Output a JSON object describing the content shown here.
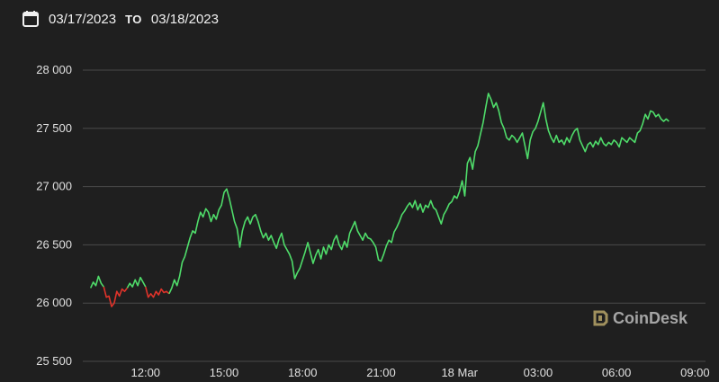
{
  "date_range": {
    "from": "03/17/2023",
    "separator": "TO",
    "to": "03/18/2023"
  },
  "brand": {
    "name": "CoinDesk"
  },
  "colors": {
    "up": "#4fdc6a",
    "down": "#e0332a",
    "grid": "#4a4a4a",
    "background": "#1f1f1f"
  },
  "chart_data": {
    "type": "line",
    "ylim": [
      25500,
      28000
    ],
    "y_ticks": [
      25500,
      26000,
      26500,
      27000,
      27500,
      28000
    ],
    "y_tick_labels": [
      "25 500",
      "26 000",
      "26 500",
      "27 000",
      "27 500",
      "28 000"
    ],
    "x_ticks": [
      12,
      15,
      18,
      21,
      24,
      27,
      30,
      33
    ],
    "x_tick_labels": [
      "12:00",
      "15:00",
      "18:00",
      "21:00",
      "18 Mar",
      "03:00",
      "06:00",
      "09:00"
    ],
    "xlim": [
      9.6,
      33.4
    ],
    "grid": true,
    "series": [
      {
        "color": "up",
        "points": [
          [
            9.9,
            26130
          ],
          [
            10.0,
            26180
          ],
          [
            10.1,
            26150
          ],
          [
            10.2,
            26230
          ],
          [
            10.3,
            26170
          ],
          [
            10.4,
            26140
          ]
        ]
      },
      {
        "color": "down",
        "points": [
          [
            10.4,
            26140
          ],
          [
            10.5,
            26050
          ],
          [
            10.6,
            26060
          ],
          [
            10.7,
            25970
          ],
          [
            10.8,
            26000
          ],
          [
            10.9,
            26100
          ],
          [
            11.0,
            26060
          ],
          [
            11.1,
            26120
          ],
          [
            11.2,
            26100
          ],
          [
            11.3,
            26130
          ]
        ]
      },
      {
        "color": "up",
        "points": [
          [
            11.3,
            26130
          ],
          [
            11.4,
            26170
          ],
          [
            11.5,
            26140
          ],
          [
            11.6,
            26200
          ],
          [
            11.7,
            26150
          ],
          [
            11.8,
            26220
          ],
          [
            11.9,
            26180
          ],
          [
            12.0,
            26140
          ]
        ]
      },
      {
        "color": "down",
        "points": [
          [
            12.0,
            26140
          ],
          [
            12.1,
            26050
          ],
          [
            12.2,
            26080
          ],
          [
            12.3,
            26050
          ],
          [
            12.4,
            26100
          ],
          [
            12.5,
            26070
          ],
          [
            12.6,
            26120
          ],
          [
            12.7,
            26090
          ],
          [
            12.8,
            26100
          ],
          [
            12.9,
            26080
          ]
        ]
      },
      {
        "color": "up",
        "points": [
          [
            12.9,
            26080
          ],
          [
            13.0,
            26130
          ],
          [
            13.1,
            26200
          ],
          [
            13.2,
            26150
          ],
          [
            13.3,
            26230
          ],
          [
            13.4,
            26350
          ],
          [
            13.5,
            26400
          ],
          [
            13.6,
            26480
          ],
          [
            13.7,
            26560
          ],
          [
            13.8,
            26620
          ],
          [
            13.9,
            26600
          ],
          [
            14.0,
            26700
          ],
          [
            14.1,
            26780
          ],
          [
            14.2,
            26740
          ],
          [
            14.3,
            26810
          ],
          [
            14.4,
            26780
          ],
          [
            14.5,
            26700
          ],
          [
            14.6,
            26760
          ],
          [
            14.7,
            26720
          ],
          [
            14.8,
            26800
          ],
          [
            14.9,
            26840
          ],
          [
            15.0,
            26950
          ],
          [
            15.1,
            26980
          ],
          [
            15.2,
            26900
          ],
          [
            15.3,
            26800
          ],
          [
            15.4,
            26700
          ],
          [
            15.5,
            26640
          ],
          [
            15.6,
            26480
          ],
          [
            15.7,
            26620
          ],
          [
            15.8,
            26700
          ],
          [
            15.9,
            26740
          ],
          [
            16.0,
            26680
          ],
          [
            16.1,
            26740
          ],
          [
            16.2,
            26760
          ],
          [
            16.3,
            26700
          ],
          [
            16.4,
            26620
          ],
          [
            16.5,
            26560
          ],
          [
            16.6,
            26600
          ],
          [
            16.7,
            26540
          ],
          [
            16.8,
            26580
          ],
          [
            16.9,
            26520
          ],
          [
            17.0,
            26470
          ],
          [
            17.1,
            26550
          ],
          [
            17.2,
            26600
          ],
          [
            17.3,
            26500
          ],
          [
            17.4,
            26460
          ],
          [
            17.5,
            26420
          ],
          [
            17.6,
            26360
          ],
          [
            17.7,
            26210
          ],
          [
            17.8,
            26260
          ],
          [
            17.9,
            26300
          ],
          [
            18.0,
            26370
          ],
          [
            18.1,
            26440
          ],
          [
            18.2,
            26520
          ],
          [
            18.3,
            26430
          ],
          [
            18.4,
            26340
          ],
          [
            18.5,
            26410
          ],
          [
            18.6,
            26460
          ],
          [
            18.7,
            26380
          ],
          [
            18.8,
            26480
          ],
          [
            18.9,
            26420
          ],
          [
            19.0,
            26500
          ],
          [
            19.1,
            26460
          ],
          [
            19.2,
            26540
          ],
          [
            19.3,
            26580
          ],
          [
            19.4,
            26500
          ],
          [
            19.5,
            26460
          ],
          [
            19.6,
            26530
          ],
          [
            19.7,
            26480
          ],
          [
            19.8,
            26600
          ],
          [
            19.9,
            26650
          ],
          [
            20.0,
            26700
          ],
          [
            20.1,
            26620
          ],
          [
            20.2,
            26580
          ],
          [
            20.3,
            26540
          ],
          [
            20.4,
            26600
          ],
          [
            20.5,
            26560
          ],
          [
            20.6,
            26550
          ],
          [
            20.7,
            26520
          ],
          [
            20.8,
            26480
          ],
          [
            20.9,
            26370
          ],
          [
            21.0,
            26360
          ],
          [
            21.1,
            26420
          ],
          [
            21.2,
            26490
          ],
          [
            21.3,
            26540
          ],
          [
            21.4,
            26520
          ],
          [
            21.5,
            26610
          ],
          [
            21.6,
            26650
          ],
          [
            21.7,
            26700
          ],
          [
            21.8,
            26760
          ],
          [
            21.9,
            26790
          ],
          [
            22.0,
            26830
          ],
          [
            22.1,
            26860
          ],
          [
            22.2,
            26820
          ],
          [
            22.3,
            26880
          ],
          [
            22.4,
            26800
          ],
          [
            22.5,
            26850
          ],
          [
            22.6,
            26780
          ],
          [
            22.7,
            26840
          ],
          [
            22.8,
            26820
          ],
          [
            22.9,
            26880
          ],
          [
            23.0,
            26820
          ],
          [
            23.1,
            26800
          ],
          [
            23.2,
            26740
          ],
          [
            23.3,
            26680
          ],
          [
            23.4,
            26760
          ],
          [
            23.5,
            26800
          ],
          [
            23.6,
            26850
          ],
          [
            23.7,
            26870
          ],
          [
            23.8,
            26920
          ],
          [
            23.9,
            26900
          ],
          [
            24.0,
            26960
          ],
          [
            24.1,
            27050
          ],
          [
            24.2,
            26920
          ],
          [
            24.3,
            27200
          ],
          [
            24.4,
            27250
          ],
          [
            24.5,
            27150
          ],
          [
            24.6,
            27300
          ],
          [
            24.7,
            27350
          ],
          [
            24.8,
            27450
          ],
          [
            24.9,
            27550
          ],
          [
            25.0,
            27680
          ],
          [
            25.1,
            27800
          ],
          [
            25.2,
            27750
          ],
          [
            25.3,
            27680
          ],
          [
            25.4,
            27720
          ],
          [
            25.5,
            27650
          ],
          [
            25.6,
            27550
          ],
          [
            25.7,
            27500
          ],
          [
            25.8,
            27420
          ],
          [
            25.9,
            27400
          ],
          [
            26.0,
            27440
          ],
          [
            26.1,
            27420
          ],
          [
            26.2,
            27380
          ],
          [
            26.3,
            27420
          ],
          [
            26.4,
            27460
          ],
          [
            26.5,
            27350
          ],
          [
            26.6,
            27240
          ],
          [
            26.7,
            27400
          ],
          [
            26.8,
            27470
          ],
          [
            26.9,
            27500
          ],
          [
            27.0,
            27560
          ],
          [
            27.1,
            27640
          ],
          [
            27.2,
            27720
          ],
          [
            27.3,
            27580
          ],
          [
            27.4,
            27480
          ],
          [
            27.5,
            27420
          ],
          [
            27.6,
            27380
          ],
          [
            27.7,
            27440
          ],
          [
            27.8,
            27380
          ],
          [
            27.9,
            27400
          ],
          [
            28.0,
            27360
          ],
          [
            28.1,
            27420
          ],
          [
            28.2,
            27380
          ],
          [
            28.3,
            27440
          ],
          [
            28.4,
            27480
          ],
          [
            28.5,
            27500
          ],
          [
            28.6,
            27400
          ],
          [
            28.7,
            27350
          ],
          [
            28.8,
            27300
          ],
          [
            28.9,
            27360
          ],
          [
            29.0,
            27380
          ],
          [
            29.1,
            27340
          ],
          [
            29.2,
            27390
          ],
          [
            29.3,
            27360
          ],
          [
            29.4,
            27420
          ],
          [
            29.5,
            27370
          ],
          [
            29.6,
            27350
          ],
          [
            29.7,
            27380
          ],
          [
            29.8,
            27360
          ],
          [
            29.9,
            27400
          ],
          [
            30.0,
            27380
          ],
          [
            30.1,
            27340
          ],
          [
            30.2,
            27420
          ],
          [
            30.3,
            27400
          ],
          [
            30.4,
            27380
          ],
          [
            30.5,
            27420
          ],
          [
            30.6,
            27400
          ],
          [
            30.7,
            27380
          ],
          [
            30.8,
            27460
          ],
          [
            30.9,
            27480
          ],
          [
            31.0,
            27540
          ],
          [
            31.1,
            27620
          ],
          [
            31.2,
            27580
          ],
          [
            31.3,
            27650
          ],
          [
            31.4,
            27640
          ],
          [
            31.5,
            27600
          ],
          [
            31.6,
            27620
          ],
          [
            31.7,
            27580
          ],
          [
            31.8,
            27560
          ],
          [
            31.9,
            27580
          ],
          [
            32.0,
            27560
          ]
        ]
      }
    ]
  }
}
